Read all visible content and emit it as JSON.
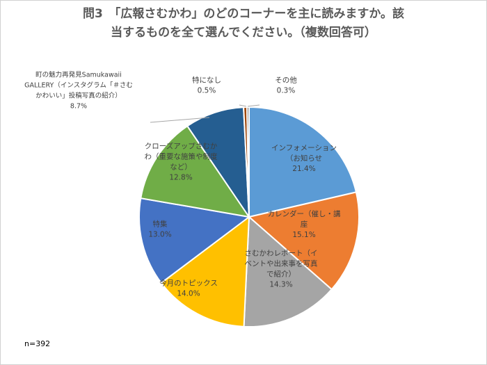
{
  "title": {
    "line1": "問3　「広報さむかわ」のどのコーナーを主に読みますか。該",
    "line2": "当するものを全て選んでください。（複数回答可）"
  },
  "n_label": "n=392",
  "chart_data": {
    "type": "pie",
    "title": "問3　「広報さむかわ」のどのコーナーを主に読みますか。該当するものを全て選んでください。（複数回答可）",
    "slices": [
      {
        "label": [
          "インフォメーション",
          "（お知らせ"
        ],
        "value": 21.4,
        "value_text": "21.4%",
        "color": "#5b9bd5"
      },
      {
        "label": [
          "カレンダー（催し・講",
          "座"
        ],
        "value": 15.1,
        "value_text": "15.1%",
        "color": "#ed7d31"
      },
      {
        "label": [
          "さむかわレポート（イ",
          "ベントや出来事を写真",
          "で紹介）"
        ],
        "value": 14.3,
        "value_text": "14.3%",
        "color": "#a5a5a5"
      },
      {
        "label": [
          "今月のトピックス"
        ],
        "value": 14.0,
        "value_text": "14.0%",
        "color": "#ffc000"
      },
      {
        "label": [
          "特集"
        ],
        "value": 13.0,
        "value_text": "13.0%",
        "color": "#4472c4"
      },
      {
        "label": [
          "クローズアップさむか",
          "わ（重要な施策や制度",
          "など）"
        ],
        "value": 12.8,
        "value_text": "12.8%",
        "color": "#70ad47"
      },
      {
        "label": [
          "町の魅力再発見Samukawaii",
          "GALLERY（インスタグラム「＃さむ",
          "かわいい」投稿写真の紹介）"
        ],
        "value": 8.7,
        "value_text": "8.7%",
        "color": "#255e91"
      },
      {
        "label": [
          "特になし"
        ],
        "value": 0.5,
        "value_text": "0.5%",
        "color": "#9e480e"
      },
      {
        "label": [
          "その他"
        ],
        "value": 0.3,
        "value_text": "0.3%",
        "color": "#636363"
      }
    ],
    "legend": "none",
    "n": "n=392"
  }
}
